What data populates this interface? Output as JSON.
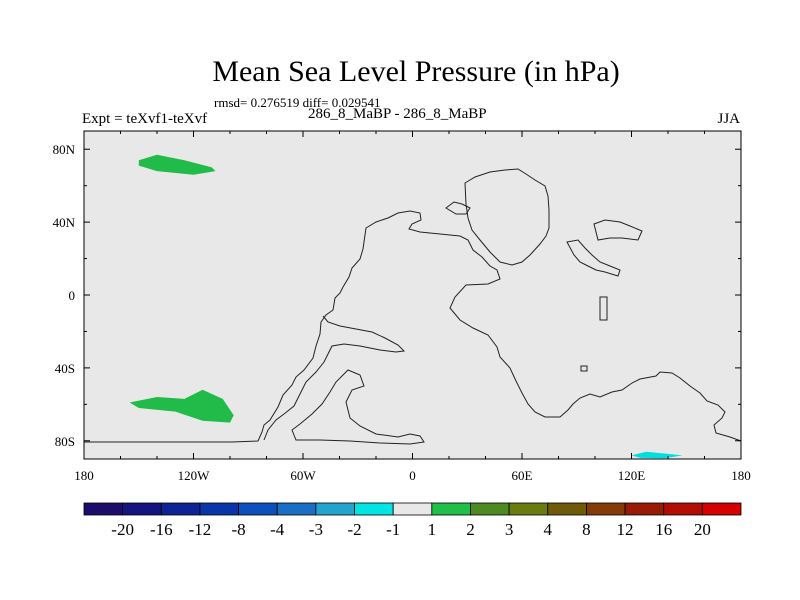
{
  "chart_data": {
    "type": "map-contour",
    "title": "Mean Sea Level Pressure (in hPa)",
    "stats_label": "rmsd= 0.276519 diff= 0.029541",
    "experiment_label": "Expt = teXvf1-teXvf",
    "subtitle": "286_8_MaBP - 286_8_MaBP",
    "season": "JJA",
    "x_axis": {
      "range": [
        -180,
        180
      ],
      "ticks": [
        -180,
        -120,
        -60,
        0,
        60,
        120,
        180
      ],
      "tick_labels": [
        "180",
        "120W",
        "60W",
        "0",
        "60E",
        "120E",
        "180"
      ]
    },
    "y_axis": {
      "range": [
        -90,
        90
      ],
      "ticks": [
        80,
        40,
        0,
        -40,
        -80
      ],
      "tick_labels": [
        "80N",
        "40N",
        "0",
        "40S",
        "80S"
      ]
    },
    "colorbar": {
      "labels": [
        "-20",
        "-16",
        "-12",
        "-8",
        "-4",
        "-3",
        "-2",
        "-1",
        "1",
        "2",
        "3",
        "4",
        "8",
        "12",
        "16",
        "20"
      ],
      "colors": [
        "#1e0c6a",
        "#15157f",
        "#0d2494",
        "#0a35a8",
        "#0c4fbd",
        "#1a6fc4",
        "#25a3cf",
        "#00e4e4",
        "#e8e8e8",
        "#1fbf4a",
        "#4d8a22",
        "#6a7b10",
        "#6f5a0a",
        "#833c07",
        "#9a1b05",
        "#b30c02",
        "#d50000"
      ]
    },
    "anomaly_regions": [
      {
        "name": "north-pacific-positive",
        "range": "1 to 2",
        "color": "#20bb48",
        "shape": [
          [
            -150,
            74
          ],
          [
            -140,
            77
          ],
          [
            -125,
            74
          ],
          [
            -110,
            70
          ],
          [
            -108,
            68
          ],
          [
            -120,
            66
          ],
          [
            -140,
            68
          ],
          [
            -150,
            71
          ]
        ]
      },
      {
        "name": "south-pacific-positive",
        "range": "1 to 2",
        "color": "#20bb48",
        "shape": [
          [
            -155,
            -59
          ],
          [
            -140,
            -56
          ],
          [
            -125,
            -57
          ],
          [
            -115,
            -52
          ],
          [
            -104,
            -57
          ],
          [
            -98,
            -66
          ],
          [
            -100,
            -70
          ],
          [
            -115,
            -69
          ],
          [
            -130,
            -64
          ],
          [
            -150,
            -62
          ]
        ]
      },
      {
        "name": "antarctic-negative",
        "range": "-2 to -1",
        "color": "#00dede",
        "shape": [
          [
            120,
            -88
          ],
          [
            128,
            -86
          ],
          [
            138,
            -87
          ],
          [
            148,
            -88
          ],
          [
            138,
            -89.6
          ],
          [
            125,
            -89.4
          ]
        ]
      }
    ]
  }
}
